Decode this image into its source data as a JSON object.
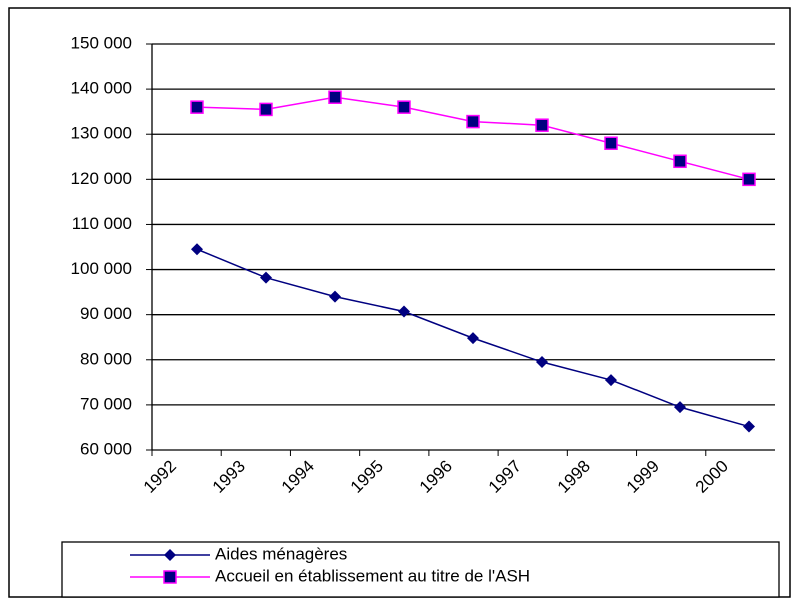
{
  "chart_data": {
    "type": "line",
    "categories": [
      "1992",
      "1993",
      "1994",
      "1995",
      "1996",
      "1997",
      "1998",
      "1999",
      "2000"
    ],
    "series": [
      {
        "name": "Aides ménagères",
        "color": "#000080",
        "marker": "diamond",
        "marker_color": "#000080",
        "values": [
          104500,
          98200,
          94000,
          90700,
          84800,
          79500,
          75500,
          69500,
          65200
        ]
      },
      {
        "name": "Accueil en établissement au titre de l'ASH",
        "color": "#ff00ff",
        "marker": "square",
        "marker_color": "#000080",
        "values": [
          136000,
          135500,
          138200,
          136000,
          132800,
          132000,
          128000,
          124000,
          120000
        ]
      }
    ],
    "ylim": [
      60000,
      150000
    ],
    "yticks": [
      {
        "value": 60000,
        "label": "60 000"
      },
      {
        "value": 70000,
        "label": "70 000"
      },
      {
        "value": 80000,
        "label": "80 000"
      },
      {
        "value": 90000,
        "label": "90 000"
      },
      {
        "value": 100000,
        "label": "100 000"
      },
      {
        "value": 110000,
        "label": "110 000"
      },
      {
        "value": 120000,
        "label": "120 000"
      },
      {
        "value": 130000,
        "label": "130 000"
      },
      {
        "value": 140000,
        "label": "140 000"
      },
      {
        "value": 150000,
        "label": "150 000"
      }
    ],
    "grid": true,
    "legend": "bottom"
  }
}
